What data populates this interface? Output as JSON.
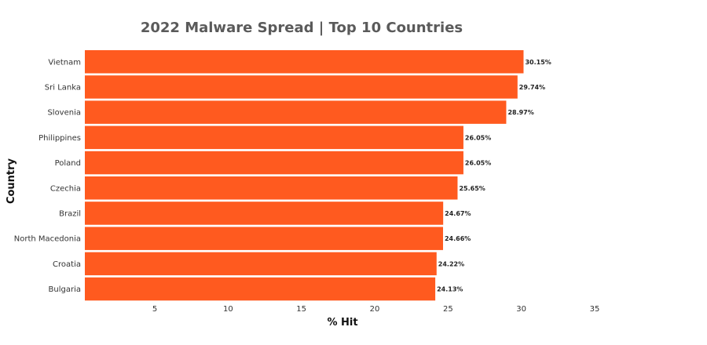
{
  "chart_data": {
    "type": "bar",
    "orientation": "horizontal",
    "title": "2022 Malware Spread  | Top 10 Countries",
    "xlabel": "% Hit",
    "ylabel": "Country",
    "categories": [
      "Vietnam",
      "Sri Lanka",
      "Slovenia",
      "Philippines",
      "Poland",
      "Czechia",
      "Brazil",
      "North Macedonia",
      "Croatia",
      "Bulgaria"
    ],
    "values": [
      30.15,
      29.74,
      28.97,
      26.05,
      26.05,
      25.65,
      24.67,
      24.66,
      24.22,
      24.13
    ],
    "data_labels": [
      "30.15%",
      "29.74%",
      "28.97%",
      "26.05%",
      "26.05%",
      "25.65%",
      "24.67%",
      "24.66%",
      "24.22%",
      "24.13%"
    ],
    "x_ticks": [
      5,
      10,
      15,
      20,
      25,
      30,
      35
    ],
    "xlim": [
      0,
      35
    ],
    "grid": false,
    "legend": "none",
    "bar_color": "#ff5a1f"
  }
}
